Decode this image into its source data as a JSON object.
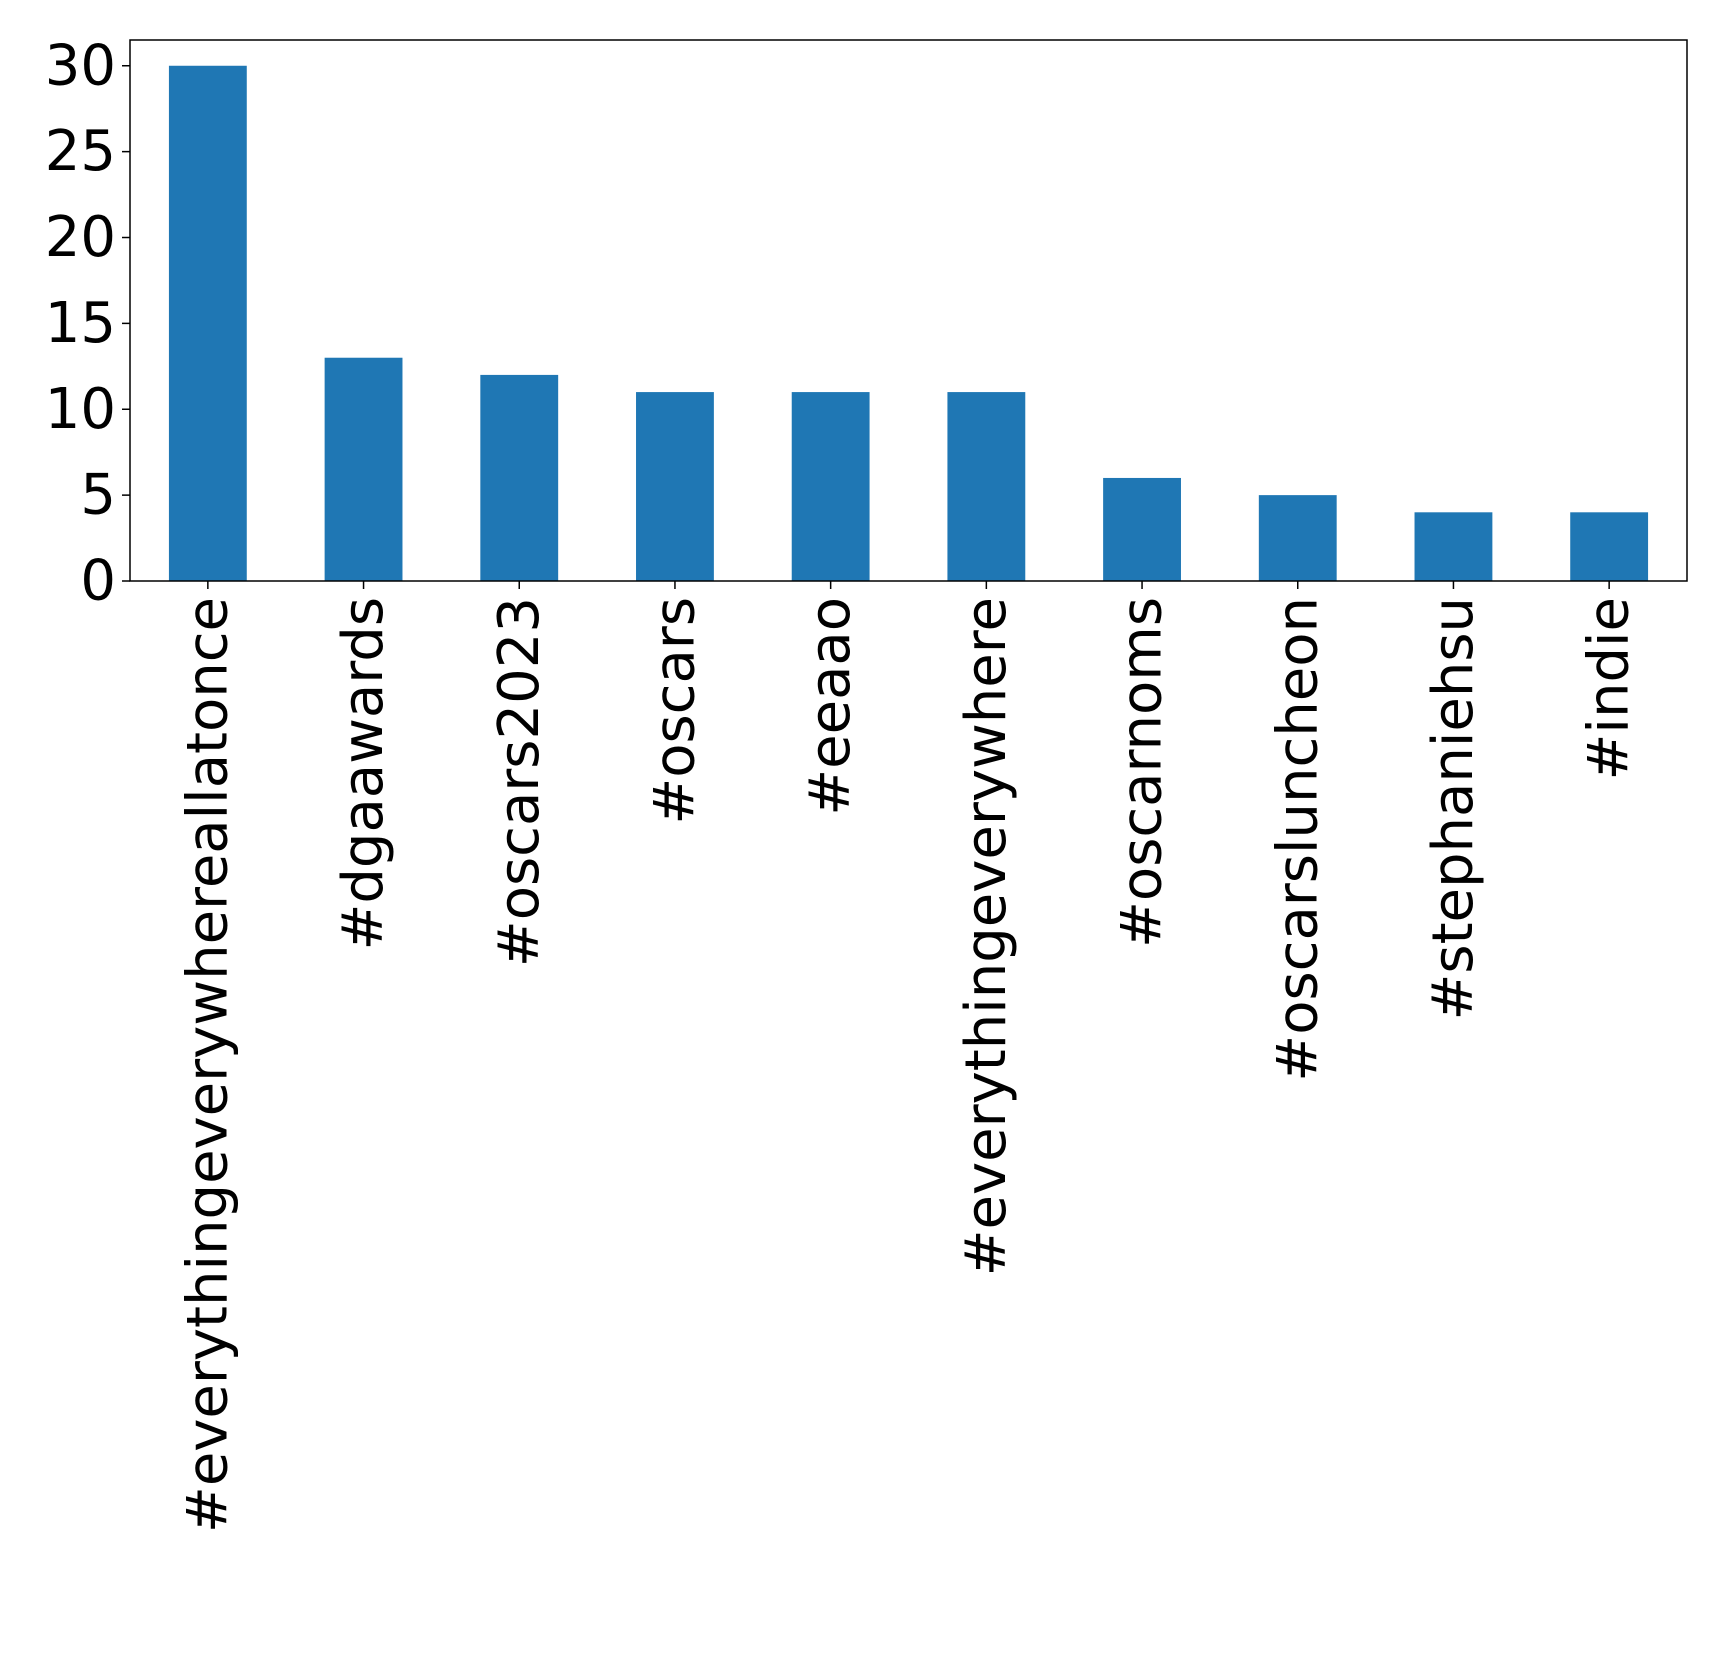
{
  "chart_data": {
    "type": "bar",
    "categories": [
      "#everythingeverywhereallatonce",
      "#dgaawards",
      "#oscars2023",
      "#oscars",
      "#eeaao",
      "#everythingeverywhere",
      "#oscarnoms",
      "#oscarsluncheon",
      "#stephaniehsu",
      "#indie"
    ],
    "values": [
      30,
      13,
      12,
      11,
      11,
      11,
      6,
      5,
      4,
      4
    ],
    "ylim": [
      0,
      31.5
    ],
    "yticks": [
      0,
      5,
      10,
      15,
      20,
      25,
      30
    ],
    "bar_color": "#1f77b4",
    "grid": false,
    "legend": "none"
  }
}
